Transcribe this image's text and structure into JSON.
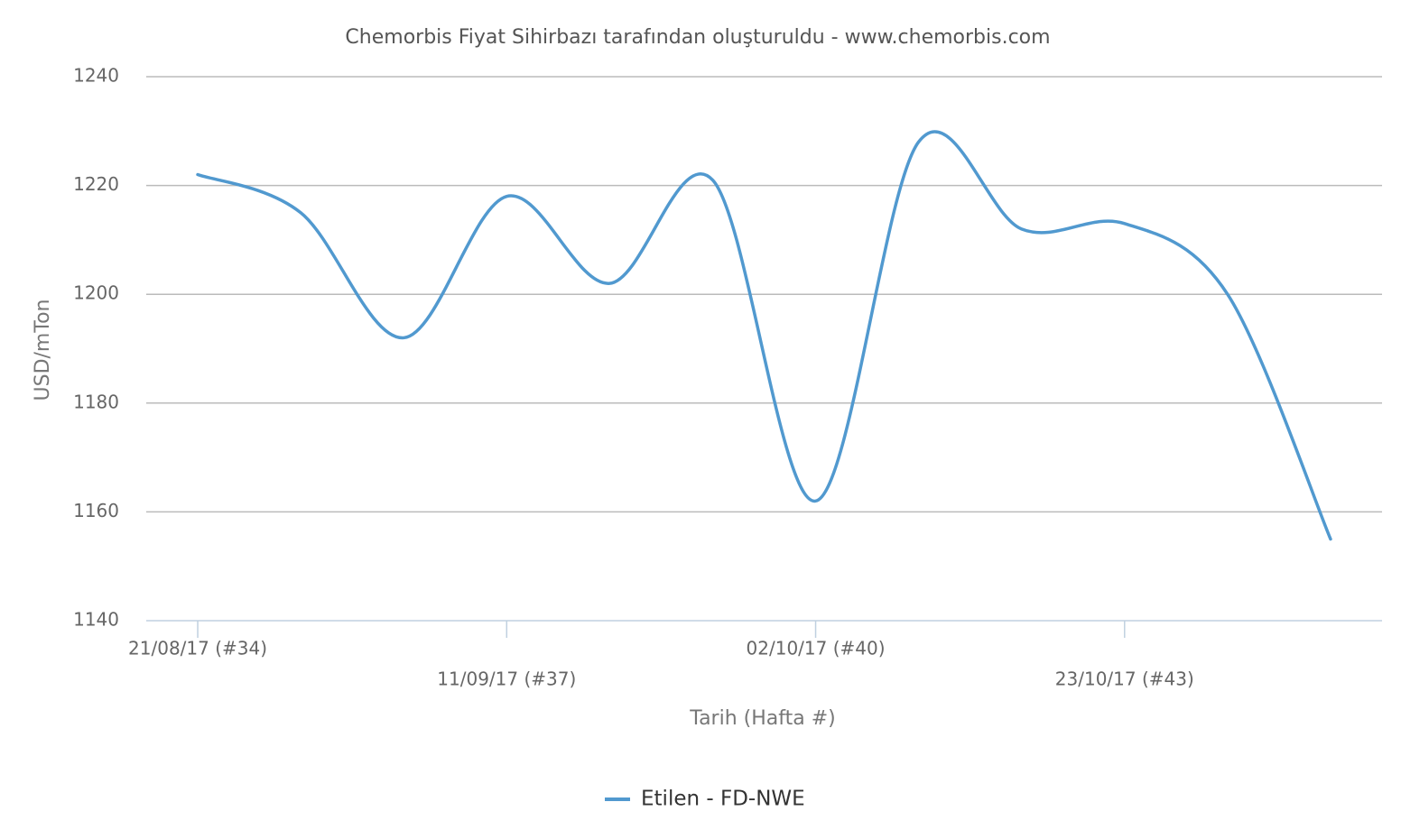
{
  "chart_data": {
    "type": "line",
    "title": "Chemorbis Fiyat Sihirbazı tarafından oluşturuldu - www.chemorbis.com",
    "x_label": "Tarih (Hafta #)",
    "y_label": "USD/mTon",
    "categories": [
      "21/08/17 (#34)",
      null,
      null,
      "11/09/17 (#37)",
      null,
      null,
      "02/10/17 (#40)",
      null,
      null,
      "23/10/17 (#43)",
      null,
      null
    ],
    "series": [
      {
        "name": "Etilen - FD-NWE",
        "color": "#5199cf",
        "values": [
          1222,
          1215,
          1192,
          1218,
          1202,
          1221,
          1162,
          1228,
          1212,
          1213,
          1200,
          1155
        ]
      }
    ],
    "ylim": [
      1140,
      1240
    ],
    "yticks": [
      1140,
      1160,
      1180,
      1200,
      1220,
      1240
    ],
    "grid": true,
    "legend": "bottom"
  }
}
